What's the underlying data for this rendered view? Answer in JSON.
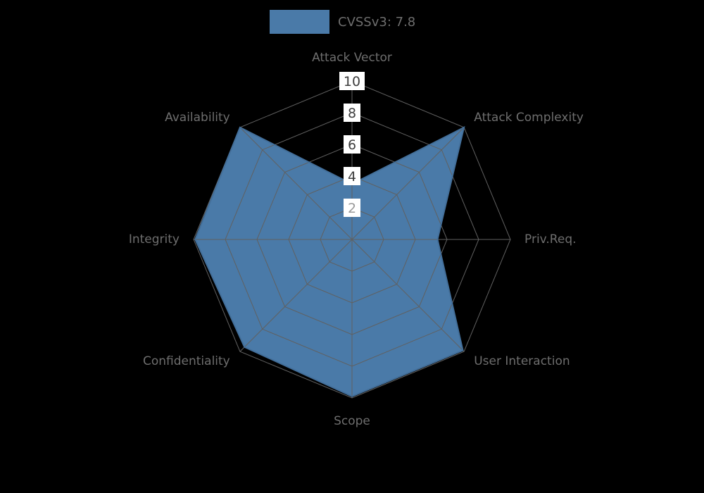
{
  "page": {
    "background": "#000000"
  },
  "legend": {
    "label": "CVSSv3: 7.8"
  },
  "chart_data": {
    "type": "radar",
    "title": "CVSSv3: 7.8",
    "categories": [
      "Attack Vector",
      "Attack Complexity",
      "Priv.Req.",
      "User Interaction",
      "Scope",
      "Confidentiality",
      "Integrity",
      "Availability"
    ],
    "series": [
      {
        "name": "CVSSv3: 7.8",
        "values": [
          3.5,
          10,
          5.4,
          9.9,
          9.9,
          9.6,
          9.9,
          10
        ]
      }
    ],
    "radial_ticks": [
      2,
      4,
      6,
      8,
      10
    ],
    "tick_label_colors": [
      "#9a9a9a",
      "#3d3d3d",
      "#3d3d3d",
      "#3d3d3d",
      "#3d3d3d"
    ],
    "r_max": 10,
    "grid": true,
    "legend_position": "top-center",
    "colors": {
      "fill": "#4a7aa8",
      "stroke": "#436f9a",
      "grid": "#606060",
      "axis_label": "#6e6e6e",
      "tick_box": "#ffffff"
    }
  }
}
